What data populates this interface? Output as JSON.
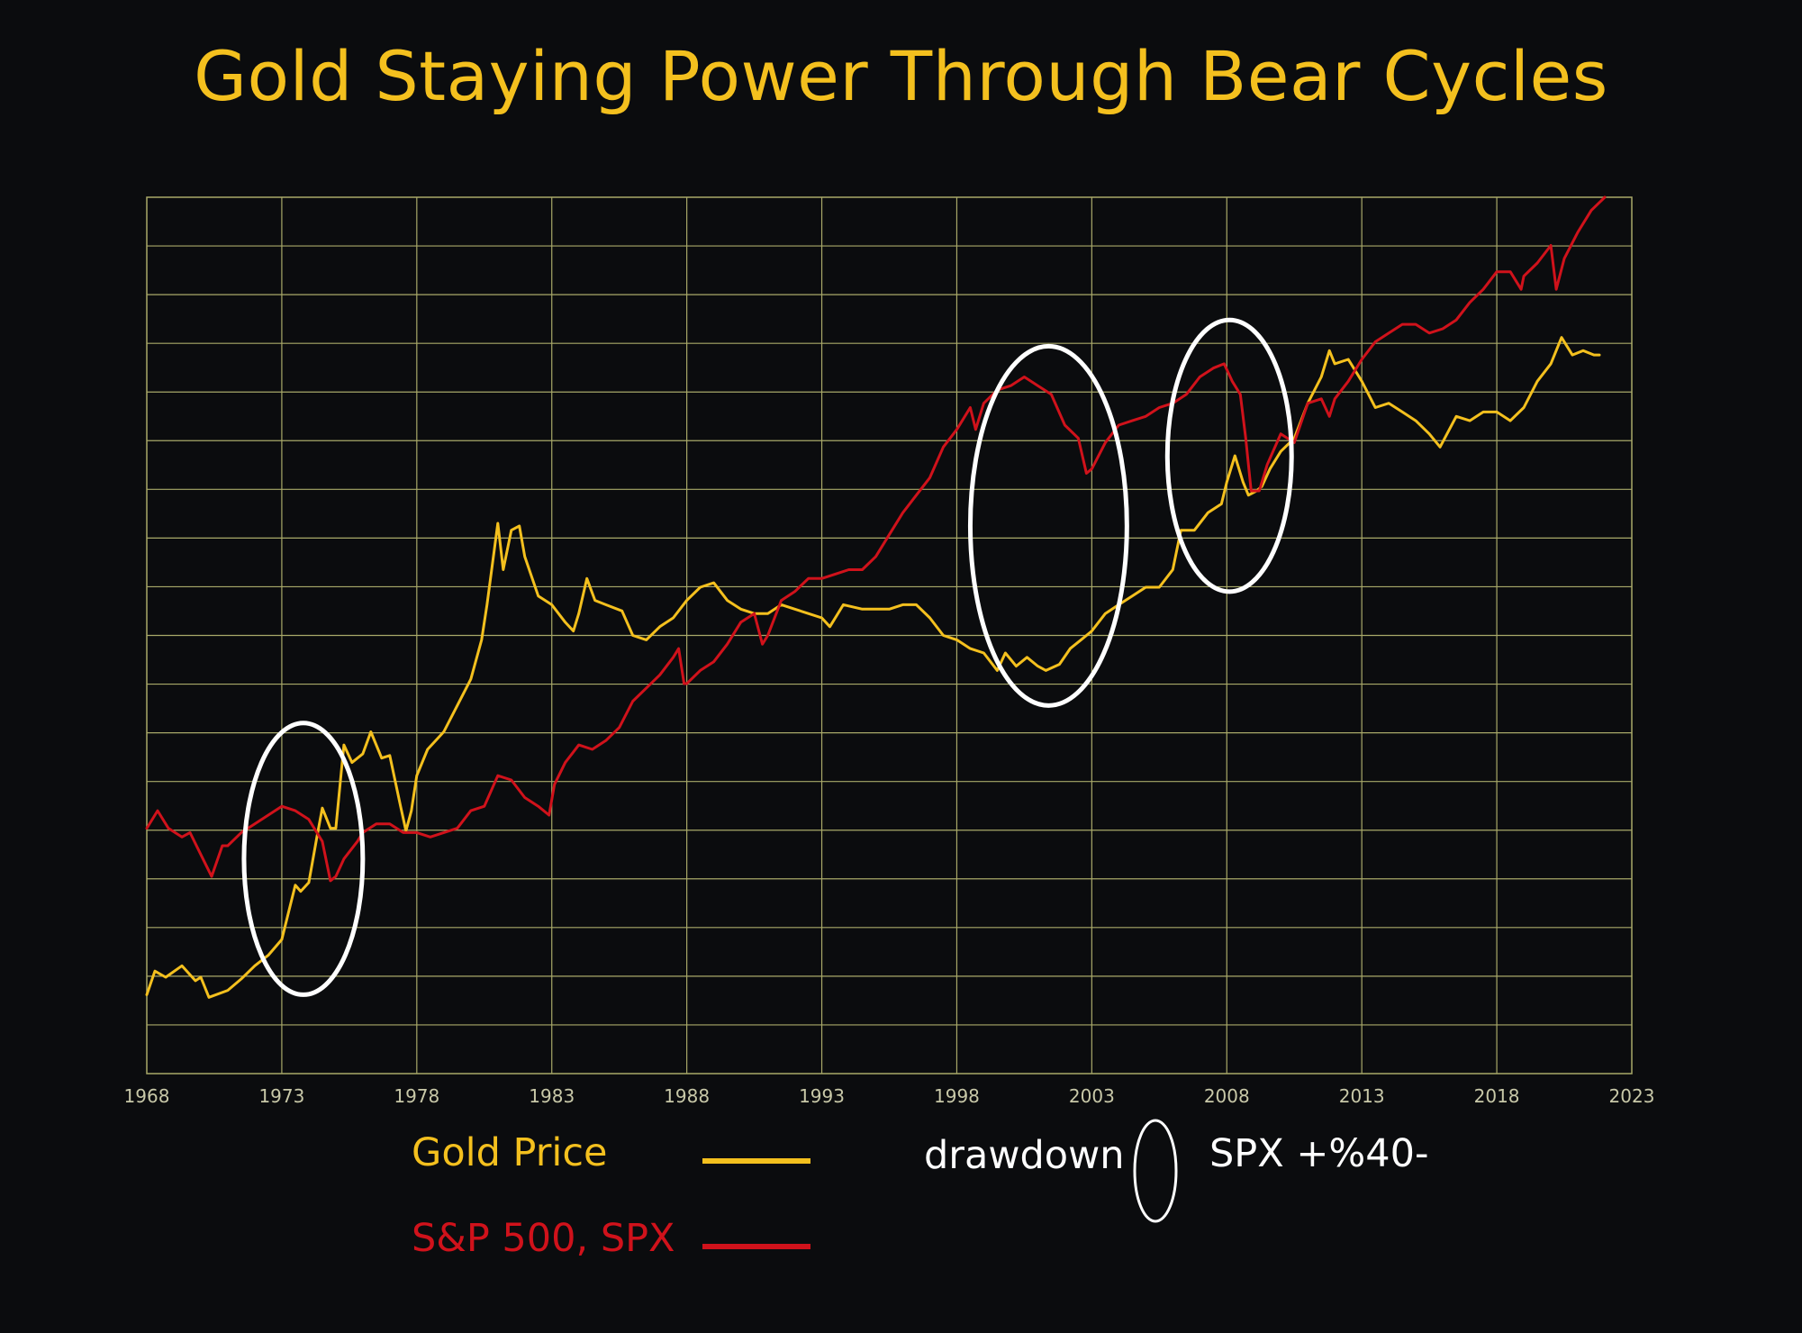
{
  "chart_data": {
    "type": "line",
    "title": "Gold Staying Power Through Bear Cycles",
    "xlabel": "",
    "ylabel": "",
    "xlim": [
      1968,
      2023
    ],
    "ylim": [
      0,
      100
    ],
    "y_tick_labels_shown": false,
    "grid": true,
    "x_ticks": [
      1968,
      1973,
      1978,
      1983,
      1988,
      1993,
      1998,
      2003,
      2008,
      2013,
      2018,
      2023
    ],
    "colors": {
      "background": "#0b0c0e",
      "grid": "#a9a969",
      "gold": "#f4c01e",
      "spx": "#d0121b",
      "highlight": "#ffffff",
      "tick_label": "#c8c8a8"
    },
    "series": [
      {
        "name": "Gold Price",
        "color": "#f4c01e",
        "points": [
          [
            1968.0,
            9.0
          ],
          [
            1968.3,
            11.7
          ],
          [
            1968.7,
            11.0
          ],
          [
            1969.3,
            12.3
          ],
          [
            1969.8,
            10.6
          ],
          [
            1970.0,
            11.0
          ],
          [
            1970.3,
            8.7
          ],
          [
            1971.0,
            9.5
          ],
          [
            1971.5,
            10.8
          ],
          [
            1972.0,
            12.3
          ],
          [
            1972.5,
            13.5
          ],
          [
            1973.0,
            15.3
          ],
          [
            1973.5,
            21.5
          ],
          [
            1973.7,
            20.8
          ],
          [
            1974.0,
            21.8
          ],
          [
            1974.3,
            27.0
          ],
          [
            1974.5,
            30.3
          ],
          [
            1974.8,
            28.0
          ],
          [
            1975.0,
            28.0
          ],
          [
            1975.3,
            37.5
          ],
          [
            1975.6,
            35.5
          ],
          [
            1976.0,
            36.5
          ],
          [
            1976.3,
            39.0
          ],
          [
            1976.7,
            36.0
          ],
          [
            1977.0,
            36.3
          ],
          [
            1977.4,
            30.5
          ],
          [
            1977.6,
            27.7
          ],
          [
            1977.8,
            30.0
          ],
          [
            1978.0,
            34.0
          ],
          [
            1978.4,
            37.0
          ],
          [
            1979.0,
            39.0
          ],
          [
            1979.5,
            42.0
          ],
          [
            1980.0,
            45.0
          ],
          [
            1980.4,
            49.5
          ],
          [
            1980.6,
            53.5
          ],
          [
            1981.0,
            62.8
          ],
          [
            1981.2,
            57.5
          ],
          [
            1981.5,
            62.0
          ],
          [
            1981.8,
            62.5
          ],
          [
            1982.0,
            59.0
          ],
          [
            1982.5,
            54.5
          ],
          [
            1983.0,
            53.5
          ],
          [
            1983.5,
            51.5
          ],
          [
            1983.8,
            50.5
          ],
          [
            1984.0,
            52.5
          ],
          [
            1984.3,
            56.5
          ],
          [
            1984.6,
            54.0
          ],
          [
            1985.0,
            53.5
          ],
          [
            1985.6,
            52.8
          ],
          [
            1986.0,
            50.0
          ],
          [
            1986.5,
            49.5
          ],
          [
            1987.0,
            51.0
          ],
          [
            1987.5,
            52.0
          ],
          [
            1988.0,
            54.0
          ],
          [
            1988.5,
            55.5
          ],
          [
            1989.0,
            56.0
          ],
          [
            1989.5,
            54.0
          ],
          [
            1990.0,
            53.0
          ],
          [
            1990.5,
            52.5
          ],
          [
            1991.0,
            52.5
          ],
          [
            1991.5,
            53.5
          ],
          [
            1992.0,
            53.0
          ],
          [
            1992.5,
            52.5
          ],
          [
            1993.0,
            52.0
          ],
          [
            1993.3,
            51.0
          ],
          [
            1993.8,
            53.5
          ],
          [
            1994.5,
            53.0
          ],
          [
            1995.5,
            53.0
          ],
          [
            1996.0,
            53.5
          ],
          [
            1996.5,
            53.5
          ],
          [
            1997.0,
            52.0
          ],
          [
            1997.5,
            50.0
          ],
          [
            1998.0,
            49.5
          ],
          [
            1998.5,
            48.5
          ],
          [
            1999.0,
            48.0
          ],
          [
            1999.5,
            46.0
          ],
          [
            1999.8,
            48.0
          ],
          [
            2000.2,
            46.5
          ],
          [
            2000.6,
            47.5
          ],
          [
            2001.0,
            46.5
          ],
          [
            2001.3,
            46.0
          ],
          [
            2001.8,
            46.7
          ],
          [
            2002.2,
            48.5
          ],
          [
            2002.6,
            49.5
          ],
          [
            2003.0,
            50.5
          ],
          [
            2003.5,
            52.5
          ],
          [
            2004.0,
            53.5
          ],
          [
            2004.5,
            54.5
          ],
          [
            2005.0,
            55.5
          ],
          [
            2005.5,
            55.5
          ],
          [
            2006.0,
            57.5
          ],
          [
            2006.3,
            62.0
          ],
          [
            2006.8,
            62.0
          ],
          [
            2007.3,
            64.0
          ],
          [
            2007.8,
            65.0
          ],
          [
            2008.0,
            67.5
          ],
          [
            2008.3,
            70.5
          ],
          [
            2008.6,
            67.5
          ],
          [
            2008.8,
            66.0
          ],
          [
            2009.1,
            66.5
          ],
          [
            2009.3,
            67.0
          ],
          [
            2009.6,
            69.0
          ],
          [
            2010.0,
            71.0
          ],
          [
            2010.5,
            72.5
          ],
          [
            2011.0,
            76.5
          ],
          [
            2011.5,
            79.5
          ],
          [
            2011.8,
            82.5
          ],
          [
            2012.0,
            81.0
          ],
          [
            2012.5,
            81.5
          ],
          [
            2013.0,
            79.0
          ],
          [
            2013.5,
            76.0
          ],
          [
            2014.0,
            76.5
          ],
          [
            2014.5,
            75.5
          ],
          [
            2015.0,
            74.5
          ],
          [
            2015.5,
            73.0
          ],
          [
            2015.9,
            71.5
          ],
          [
            2016.5,
            75.0
          ],
          [
            2017.0,
            74.5
          ],
          [
            2017.5,
            75.5
          ],
          [
            2018.0,
            75.5
          ],
          [
            2018.5,
            74.5
          ],
          [
            2019.0,
            76.0
          ],
          [
            2019.5,
            79.0
          ],
          [
            2020.0,
            81.0
          ],
          [
            2020.4,
            84.0
          ],
          [
            2020.8,
            82.0
          ],
          [
            2021.2,
            82.5
          ],
          [
            2021.6,
            82.0
          ],
          [
            2021.8,
            82.0
          ]
        ]
      },
      {
        "name": "S&P 500, SPX",
        "color": "#d0121b",
        "points": [
          [
            1968.0,
            28.0
          ],
          [
            1968.4,
            30.0
          ],
          [
            1968.8,
            28.0
          ],
          [
            1969.3,
            27.0
          ],
          [
            1969.6,
            27.5
          ],
          [
            1970.0,
            25.0
          ],
          [
            1970.4,
            22.5
          ],
          [
            1970.8,
            26.0
          ],
          [
            1971.0,
            26.0
          ],
          [
            1971.5,
            27.5
          ],
          [
            1972.0,
            28.5
          ],
          [
            1972.5,
            29.5
          ],
          [
            1973.0,
            30.5
          ],
          [
            1973.5,
            30.0
          ],
          [
            1974.0,
            29.0
          ],
          [
            1974.5,
            26.5
          ],
          [
            1974.8,
            22.0
          ],
          [
            1975.0,
            22.5
          ],
          [
            1975.3,
            24.5
          ],
          [
            1975.8,
            26.5
          ],
          [
            1976.0,
            27.5
          ],
          [
            1976.5,
            28.5
          ],
          [
            1977.0,
            28.5
          ],
          [
            1977.5,
            27.5
          ],
          [
            1978.0,
            27.5
          ],
          [
            1978.5,
            27.0
          ],
          [
            1979.0,
            27.5
          ],
          [
            1979.5,
            28.0
          ],
          [
            1980.0,
            30.0
          ],
          [
            1980.5,
            30.5
          ],
          [
            1981.0,
            34.0
          ],
          [
            1981.5,
            33.5
          ],
          [
            1982.0,
            31.5
          ],
          [
            1982.5,
            30.5
          ],
          [
            1982.9,
            29.5
          ],
          [
            1983.1,
            33.0
          ],
          [
            1983.5,
            35.5
          ],
          [
            1984.0,
            37.5
          ],
          [
            1984.5,
            37.0
          ],
          [
            1985.0,
            38.0
          ],
          [
            1985.5,
            39.5
          ],
          [
            1986.0,
            42.5
          ],
          [
            1986.5,
            44.0
          ],
          [
            1987.0,
            45.5
          ],
          [
            1987.5,
            47.5
          ],
          [
            1987.7,
            48.5
          ],
          [
            1987.9,
            44.5
          ],
          [
            1988.0,
            44.5
          ],
          [
            1988.5,
            46.0
          ],
          [
            1989.0,
            47.0
          ],
          [
            1989.5,
            49.0
          ],
          [
            1990.0,
            51.5
          ],
          [
            1990.5,
            52.5
          ],
          [
            1990.8,
            49.0
          ],
          [
            1991.0,
            50.0
          ],
          [
            1991.5,
            54.0
          ],
          [
            1992.0,
            55.0
          ],
          [
            1992.5,
            56.5
          ],
          [
            1993.0,
            56.5
          ],
          [
            1993.5,
            57.0
          ],
          [
            1994.0,
            57.5
          ],
          [
            1994.5,
            57.5
          ],
          [
            1995.0,
            59.0
          ],
          [
            1995.5,
            61.5
          ],
          [
            1996.0,
            64.0
          ],
          [
            1996.5,
            66.0
          ],
          [
            1997.0,
            68.0
          ],
          [
            1997.5,
            71.5
          ],
          [
            1998.0,
            73.5
          ],
          [
            1998.5,
            76.0
          ],
          [
            1998.7,
            73.5
          ],
          [
            1999.0,
            76.5
          ],
          [
            1999.5,
            78.0
          ],
          [
            2000.0,
            78.5
          ],
          [
            2000.5,
            79.5
          ],
          [
            2001.0,
            78.5
          ],
          [
            2001.5,
            77.5
          ],
          [
            2002.0,
            74.0
          ],
          [
            2002.5,
            72.5
          ],
          [
            2002.8,
            68.5
          ],
          [
            2003.0,
            69.0
          ],
          [
            2003.5,
            72.0
          ],
          [
            2004.0,
            74.0
          ],
          [
            2004.5,
            74.5
          ],
          [
            2005.0,
            75.0
          ],
          [
            2005.5,
            76.0
          ],
          [
            2006.0,
            76.5
          ],
          [
            2006.5,
            77.5
          ],
          [
            2007.0,
            79.5
          ],
          [
            2007.5,
            80.5
          ],
          [
            2007.9,
            81.0
          ],
          [
            2008.2,
            79.0
          ],
          [
            2008.5,
            77.5
          ],
          [
            2008.7,
            72.5
          ],
          [
            2008.9,
            66.5
          ],
          [
            2009.2,
            66.5
          ],
          [
            2009.5,
            69.5
          ],
          [
            2010.0,
            73.0
          ],
          [
            2010.5,
            72.0
          ],
          [
            2011.0,
            76.5
          ],
          [
            2011.5,
            77.0
          ],
          [
            2011.8,
            75.0
          ],
          [
            2012.0,
            77.0
          ],
          [
            2012.5,
            79.0
          ],
          [
            2013.0,
            81.5
          ],
          [
            2013.5,
            83.5
          ],
          [
            2014.0,
            84.5
          ],
          [
            2014.5,
            85.5
          ],
          [
            2015.0,
            85.5
          ],
          [
            2015.5,
            84.5
          ],
          [
            2016.0,
            85.0
          ],
          [
            2016.5,
            86.0
          ],
          [
            2017.0,
            88.0
          ],
          [
            2017.5,
            89.5
          ],
          [
            2018.0,
            91.5
          ],
          [
            2018.5,
            91.5
          ],
          [
            2018.9,
            89.5
          ],
          [
            2019.0,
            91.0
          ],
          [
            2019.5,
            92.5
          ],
          [
            2020.0,
            94.5
          ],
          [
            2020.2,
            89.5
          ],
          [
            2020.5,
            93.0
          ],
          [
            2021.0,
            96.0
          ],
          [
            2021.5,
            98.5
          ],
          [
            2022.0,
            100.0
          ]
        ]
      }
    ],
    "highlights": [
      {
        "x": 1973.8,
        "y": 24.5,
        "rx": 2.2,
        "ry": 15.5
      },
      {
        "x": 2001.4,
        "y": 62.5,
        "rx": 2.9,
        "ry": 20.5
      },
      {
        "x": 2008.1,
        "y": 70.5,
        "rx": 2.3,
        "ry": 15.5
      }
    ]
  },
  "legend": {
    "gold_label": "Gold Price",
    "spx_label": "S&P 500, SPX",
    "drawdown_label": "drawdown",
    "drawdown_marker_label": "SPX +%40-"
  }
}
